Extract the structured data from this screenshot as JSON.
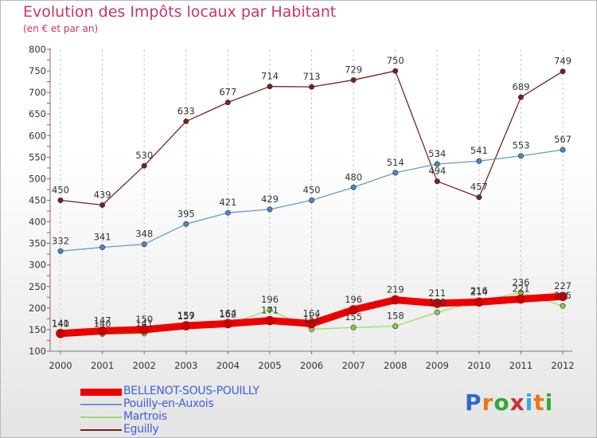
{
  "title": "Evolution des Impôts locaux par Habitant",
  "subtitle": "(en € et par an)",
  "logo_text": "Proxiti",
  "chart_data": {
    "type": "line",
    "x": [
      "2000",
      "2001",
      "2002",
      "2003",
      "2004",
      "2005",
      "2006",
      "2007",
      "2008",
      "2009",
      "2010",
      "2011",
      "2012"
    ],
    "ylim": [
      100,
      800
    ],
    "yticks": [
      100,
      150,
      200,
      250,
      300,
      350,
      400,
      450,
      500,
      550,
      600,
      650,
      700,
      750,
      800
    ],
    "grid": "vertical-dashed",
    "legend_placement": "bottom-left",
    "series": [
      {
        "name": "BELLENOT-SOUS-POUILLY",
        "color": "#ee0000",
        "values": [
          141,
          147,
          150,
          159,
          164,
          171,
          164,
          196,
          219,
          211,
          214,
          221,
          227
        ]
      },
      {
        "name": "Pouilly-en-Auxois",
        "color": "#6699cc",
        "values": [
          332,
          341,
          348,
          395,
          421,
          429,
          450,
          480,
          514,
          534,
          541,
          553,
          567
        ]
      },
      {
        "name": "Martrois",
        "color": "#99dd66",
        "values": [
          140,
          140,
          141,
          157,
          162,
          196,
          151,
          155,
          158,
          190,
          216,
          236,
          205
        ]
      },
      {
        "name": "Eguilly",
        "color": "#772222",
        "values": [
          450,
          439,
          530,
          633,
          677,
          714,
          713,
          729,
          750,
          494,
          457,
          689,
          749
        ]
      }
    ]
  }
}
